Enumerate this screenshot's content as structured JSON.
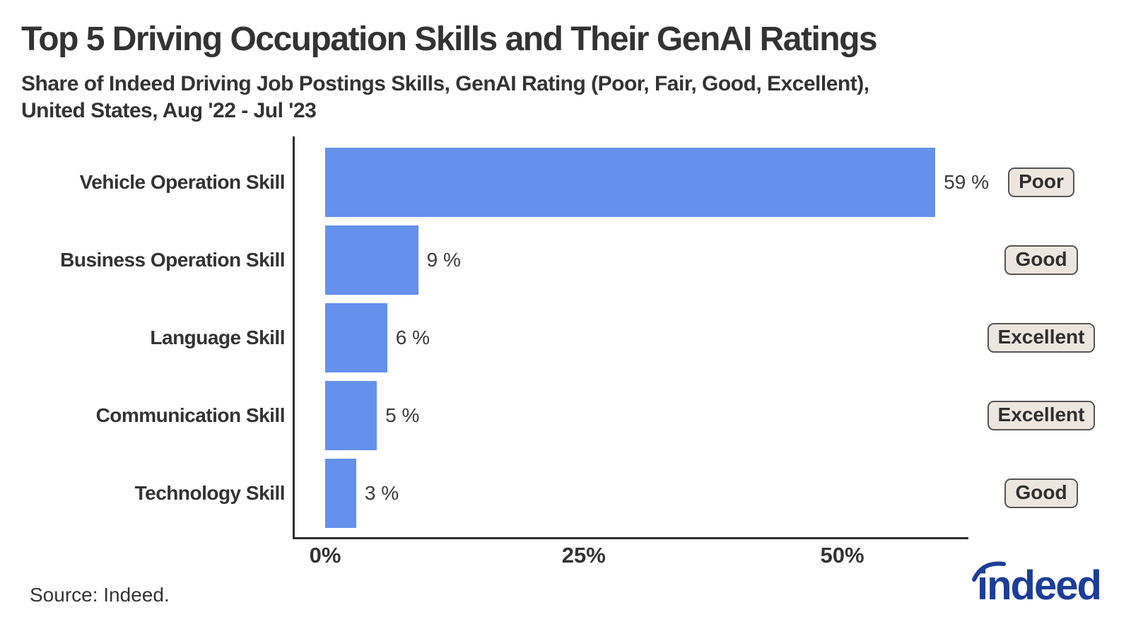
{
  "header": {
    "title": "Top 5 Driving Occupation Skills and Their GenAI Ratings",
    "subtitle": "Share of Indeed Driving Job Postings Skills, GenAI Rating (Poor, Fair, Good, Excellent),\nUnited States, Aug '22 - Jul '23"
  },
  "chart_data": {
    "type": "bar",
    "orientation": "horizontal",
    "title": "Top 5 Driving Occupation Skills and Their GenAI Ratings",
    "xlabel": "",
    "ylabel": "",
    "categories": [
      "Vehicle Operation Skill",
      "Business Operation Skill",
      "Language Skill",
      "Communication Skill",
      "Technology Skill"
    ],
    "series": [
      {
        "name": "Share of driving job postings skills",
        "values": [
          59,
          9,
          6,
          5,
          3
        ]
      }
    ],
    "value_labels": [
      "59 %",
      "9 %",
      "6 %",
      "5 %",
      "3 %"
    ],
    "genai_ratings": [
      "Poor",
      "Good",
      "Excellent",
      "Excellent",
      "Good"
    ],
    "x_ticks": [
      {
        "value": 0,
        "label": "0%"
      },
      {
        "value": 25,
        "label": "25%"
      },
      {
        "value": 50,
        "label": "50%"
      }
    ],
    "xlim": [
      0,
      62.2
    ],
    "grid": false,
    "legend": false,
    "bar_color": "#6590EC"
  },
  "colors": {
    "bar_blue": "#6590EC",
    "axis": "#2e2e2e",
    "text": "#333333",
    "badge_background": "#EDE6DF",
    "badge_border": "#555555",
    "logo_blue": "#1C3E97"
  },
  "footer": {
    "source": "Source: Indeed.",
    "logo_text": "indeed"
  }
}
